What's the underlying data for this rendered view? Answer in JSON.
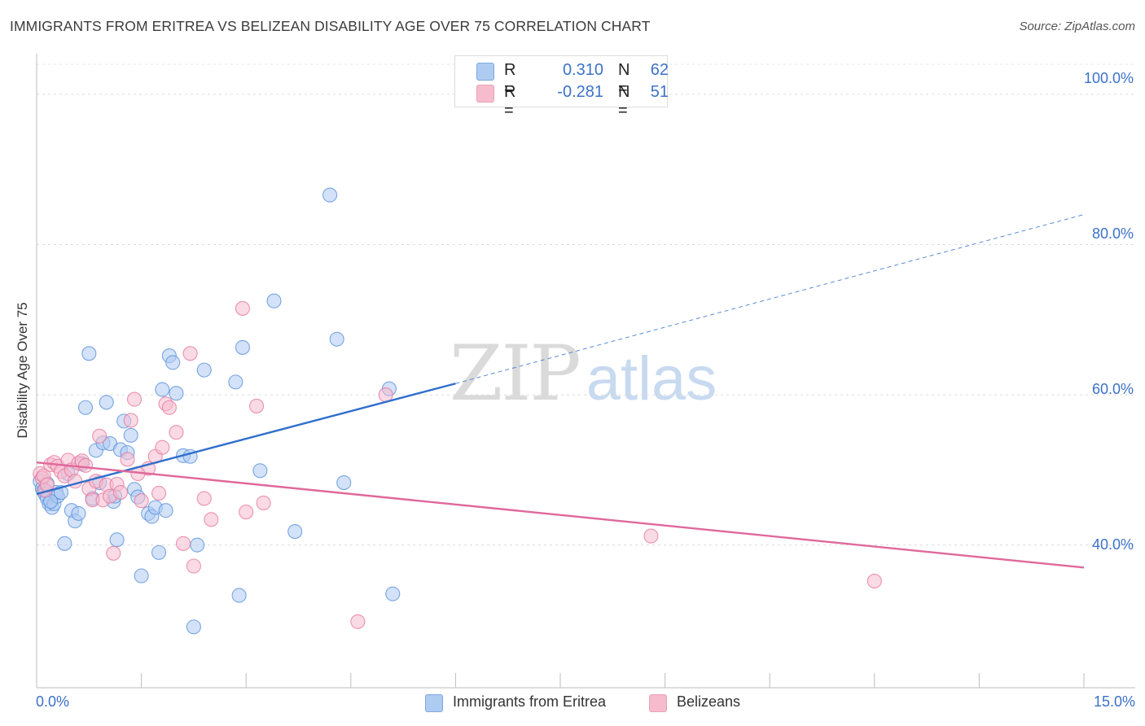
{
  "title": "IMMIGRANTS FROM ERITREA VS BELIZEAN DISABILITY AGE OVER 75 CORRELATION CHART",
  "source": "Source: ZipAtlas.com",
  "watermark": {
    "zip": "ZIP",
    "atlas": "atlas"
  },
  "legend": [
    {
      "r_label": "R =",
      "r_value": "0.310",
      "n_label": "N =",
      "n_value": "62",
      "color": "#aecbf2"
    },
    {
      "r_label": "R =",
      "r_value": "-0.281",
      "n_label": "N =",
      "n_value": "51",
      "color": "#f6bccd"
    }
  ],
  "chart_data": {
    "type": "scatter",
    "title": "IMMIGRANTS FROM ERITREA VS BELIZEAN DISABILITY AGE OVER 75 CORRELATION CHART",
    "xlabel": "",
    "ylabel": "Disability Age Over 75",
    "xlim": [
      0,
      15
    ],
    "ylim": [
      21,
      104
    ],
    "x_ticks": [
      {
        "value": 0,
        "label": "0.0%"
      },
      {
        "value": 15,
        "label": "15.0%"
      }
    ],
    "y_ticks": [
      {
        "value": 40,
        "label": "40.0%"
      },
      {
        "value": 60,
        "label": "60.0%"
      },
      {
        "value": 80,
        "label": "80.0%"
      },
      {
        "value": 100,
        "label": "100.0%"
      }
    ],
    "grid": true,
    "legend_position": "bottom",
    "series": [
      {
        "name": "Immigrants from Eritrea",
        "color": "#5b92dc",
        "fill": "#aecbf2",
        "trend": {
          "x0": 0,
          "y0": 46.8,
          "x1": 6.0,
          "y1": 61.5,
          "dashed_to_x": 15,
          "dashed_to_y": 84.0,
          "color": "#2f6fcc"
        },
        "points": [
          [
            0.05,
            48.5
          ],
          [
            0.08,
            47.5
          ],
          [
            0.1,
            47.2
          ],
          [
            0.12,
            46.8
          ],
          [
            0.15,
            46.2
          ],
          [
            0.18,
            45.5
          ],
          [
            0.22,
            45.0
          ],
          [
            0.25,
            45.5
          ],
          [
            0.28,
            47.0
          ],
          [
            0.3,
            46.5
          ],
          [
            0.35,
            47.0
          ],
          [
            0.4,
            40.2
          ],
          [
            0.45,
            49.5
          ],
          [
            0.5,
            44.6
          ],
          [
            0.55,
            43.2
          ],
          [
            0.6,
            44.2
          ],
          [
            0.65,
            50.8
          ],
          [
            0.7,
            58.3
          ],
          [
            0.75,
            65.5
          ],
          [
            0.8,
            46.2
          ],
          [
            0.85,
            52.6
          ],
          [
            0.9,
            48.3
          ],
          [
            0.95,
            53.6
          ],
          [
            1.0,
            59.0
          ],
          [
            1.05,
            53.5
          ],
          [
            1.1,
            45.8
          ],
          [
            1.12,
            46.5
          ],
          [
            1.15,
            40.7
          ],
          [
            1.2,
            52.7
          ],
          [
            1.25,
            56.5
          ],
          [
            1.3,
            52.3
          ],
          [
            1.35,
            54.6
          ],
          [
            1.4,
            47.4
          ],
          [
            1.45,
            46.4
          ],
          [
            1.5,
            35.9
          ],
          [
            1.6,
            44.2
          ],
          [
            1.65,
            43.8
          ],
          [
            1.7,
            45.0
          ],
          [
            1.75,
            39.0
          ],
          [
            1.8,
            60.7
          ],
          [
            1.85,
            44.6
          ],
          [
            1.9,
            65.2
          ],
          [
            1.95,
            64.3
          ],
          [
            2.0,
            60.2
          ],
          [
            2.1,
            51.9
          ],
          [
            2.2,
            51.8
          ],
          [
            2.25,
            29.1
          ],
          [
            2.3,
            40.0
          ],
          [
            2.4,
            63.3
          ],
          [
            2.85,
            61.7
          ],
          [
            2.9,
            33.3
          ],
          [
            2.95,
            66.3
          ],
          [
            3.2,
            49.9
          ],
          [
            3.4,
            72.5
          ],
          [
            3.7,
            41.8
          ],
          [
            4.2,
            86.6
          ],
          [
            4.3,
            67.4
          ],
          [
            4.4,
            48.3
          ],
          [
            5.05,
            60.8
          ],
          [
            5.1,
            33.5
          ],
          [
            0.2,
            45.8
          ],
          [
            0.15,
            48.2
          ]
        ]
      },
      {
        "name": "Belizeans",
        "color": "#e67aa0",
        "fill": "#f6bccd",
        "trend": {
          "x0": 0,
          "y0": 51.0,
          "x1": 15,
          "y1": 37.0,
          "color": "#e0689a"
        },
        "points": [
          [
            0.05,
            49.5
          ],
          [
            0.08,
            48.9
          ],
          [
            0.1,
            49.2
          ],
          [
            0.12,
            47.3
          ],
          [
            0.15,
            48.0
          ],
          [
            0.2,
            50.7
          ],
          [
            0.25,
            51.0
          ],
          [
            0.3,
            50.5
          ],
          [
            0.35,
            49.8
          ],
          [
            0.4,
            49.2
          ],
          [
            0.45,
            51.3
          ],
          [
            0.5,
            50.0
          ],
          [
            0.55,
            48.5
          ],
          [
            0.6,
            50.9
          ],
          [
            0.65,
            51.2
          ],
          [
            0.7,
            50.6
          ],
          [
            0.75,
            47.5
          ],
          [
            0.8,
            46.0
          ],
          [
            0.85,
            48.5
          ],
          [
            0.9,
            54.5
          ],
          [
            0.95,
            46.0
          ],
          [
            1.0,
            48.0
          ],
          [
            1.05,
            46.5
          ],
          [
            1.1,
            38.9
          ],
          [
            1.15,
            48.1
          ],
          [
            1.2,
            47.0
          ],
          [
            1.3,
            51.4
          ],
          [
            1.35,
            56.6
          ],
          [
            1.4,
            59.4
          ],
          [
            1.5,
            45.9
          ],
          [
            1.6,
            50.2
          ],
          [
            1.7,
            51.8
          ],
          [
            1.75,
            46.9
          ],
          [
            1.8,
            53.0
          ],
          [
            1.85,
            58.8
          ],
          [
            1.9,
            58.3
          ],
          [
            2.0,
            55.0
          ],
          [
            2.1,
            40.2
          ],
          [
            2.2,
            65.5
          ],
          [
            2.25,
            37.2
          ],
          [
            2.4,
            46.2
          ],
          [
            2.5,
            43.4
          ],
          [
            2.95,
            71.5
          ],
          [
            3.0,
            44.4
          ],
          [
            3.15,
            58.5
          ],
          [
            3.25,
            45.6
          ],
          [
            4.6,
            29.8
          ],
          [
            5.0,
            60.0
          ],
          [
            8.8,
            41.2
          ],
          [
            12.0,
            35.2
          ],
          [
            1.45,
            49.5
          ]
        ]
      }
    ]
  },
  "bottom_legend": [
    {
      "label": "Immigrants from Eritrea",
      "color": "#aecbf2"
    },
    {
      "label": "Belizeans",
      "color": "#f6bccd"
    }
  ]
}
